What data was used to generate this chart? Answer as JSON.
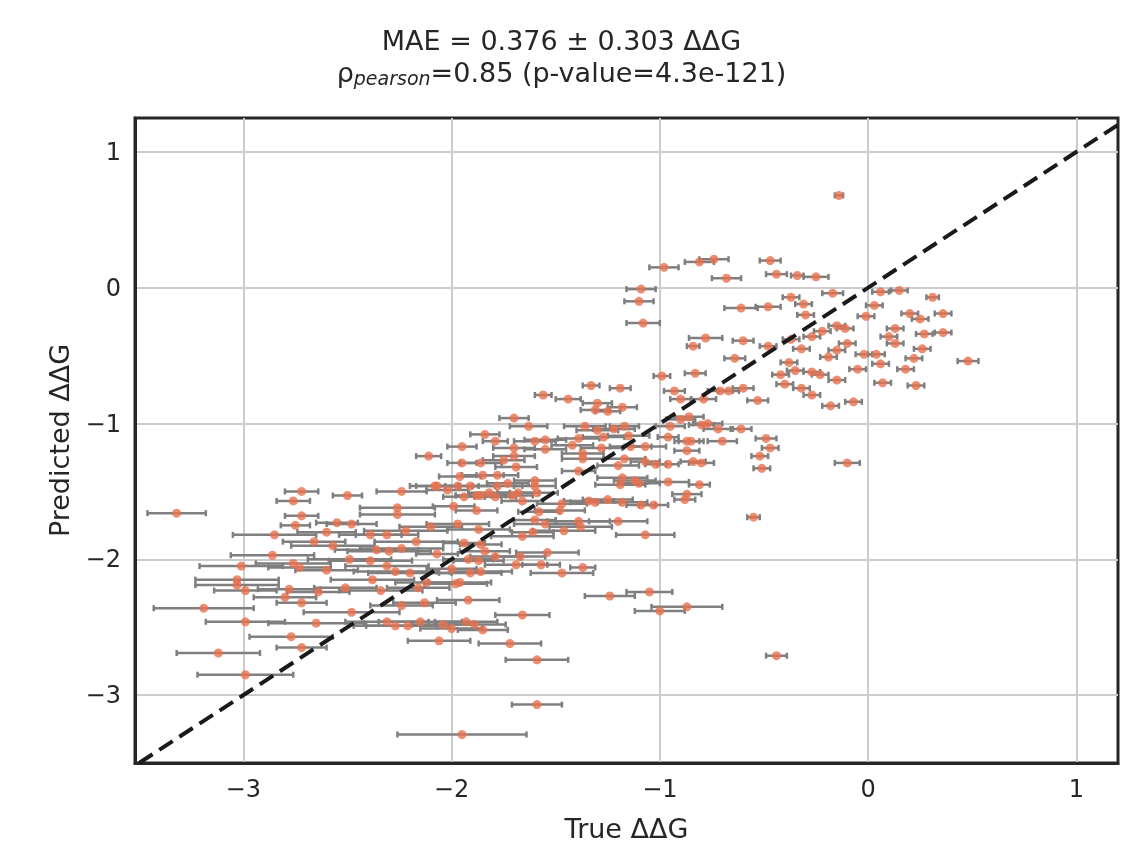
{
  "chart_data": {
    "type": "scatter",
    "title": "MAE = 0.376 ± 0.303 ΔΔG",
    "subtitle": "ρ$_{pearson}$=0.85 (p-value=4.3e-121)",
    "xlabel": "True ΔΔG",
    "ylabel": "Predicted ΔΔG",
    "xlim": [
      -3.52,
      1.2
    ],
    "ylim": [
      -3.5,
      1.25
    ],
    "xticks": [
      {
        "value": -3,
        "label": "−3"
      },
      {
        "value": -2,
        "label": "−2"
      },
      {
        "value": -1,
        "label": "−1"
      },
      0,
      1
    ],
    "yticks": [
      {
        "value": -3,
        "label": "−3"
      },
      {
        "value": -2,
        "label": "−2"
      },
      {
        "value": -1,
        "label": "−1"
      },
      0,
      1
    ],
    "grid": true,
    "series": [
      {
        "color": "#e8704f",
        "marker": "circle",
        "x": [
          -3.32,
          -2.72,
          -2.76,
          -2.72,
          -2.75,
          -2.85,
          -2.5,
          -2.6,
          -2.55,
          -2.48,
          -2.66,
          -2.86,
          -3.01,
          -3.03,
          -3.03,
          -2.99,
          -2.76,
          -2.73,
          -2.78,
          -2.8,
          -2.72,
          -2.64,
          -3.19,
          -2.99,
          -2.65,
          -2.77,
          -2.72,
          -3.12,
          -2.99,
          -2.48,
          -2.51,
          -2.6,
          -2.39,
          -2.31,
          -2.26,
          -2.26,
          -2.24,
          -2.11,
          -2.08,
          -2.1,
          -2.36,
          -2.3,
          -2.24,
          -2.49,
          -2.39,
          -2.31,
          -2.27,
          -2.2,
          -2.38,
          -2.34,
          -2.12,
          -2.16,
          -2.24,
          -2.13,
          -2.31,
          -2.27,
          -2.21,
          -2.15,
          -2.06,
          -2.22,
          -2.17,
          -2.57,
          -1.33,
          -1.19,
          -1.56,
          -1.44,
          -1.3,
          -1.31,
          -1.25,
          -1.18,
          -1.7,
          -1.63,
          -1.84,
          -1.79,
          -1.95,
          -1.6,
          -1.55,
          -1.55,
          -1.7,
          -1.7,
          -1.75,
          -1.95,
          -1.86,
          -1.69,
          -1.42,
          -1.39,
          -1.36,
          -1.3,
          -1.27,
          -1.22,
          -1.17,
          -1.15,
          -1.28,
          -1.37,
          -1.37,
          -1.2,
          -1.39,
          -1.17,
          -1.14,
          -1.07,
          -1.07,
          -1.02,
          -0.96,
          -0.96,
          -0.95,
          -0.9,
          -0.86,
          -0.87,
          -0.85,
          -0.87,
          -0.8,
          -0.77,
          -0.72,
          -0.7,
          -0.84,
          -0.8,
          -0.93,
          -0.9,
          -0.79,
          -0.71,
          -0.67,
          -1.96,
          -1.85,
          -1.78,
          -2.07,
          -2.02,
          -1.97,
          -1.91,
          -1.86,
          -1.78,
          -1.6,
          -1.6,
          -1.73,
          -1.94,
          -1.88,
          -1.82,
          -1.79,
          -1.71,
          -1.68,
          -1.66,
          -1.59,
          -1.99,
          -1.88,
          -1.47,
          -1.48,
          -1.58,
          -1.6,
          -1.34,
          -1.31,
          -1.25,
          -1.18,
          -1.09,
          -1.03,
          -0.96,
          -1.18,
          -1.19,
          -1.12,
          -1.1,
          -0.81,
          -0.87,
          -0.88,
          -1.55,
          -1.46,
          -1.39,
          -1.38,
          -1.2,
          -1.07,
          -1.66,
          -1.61,
          -1.97,
          -1.87,
          -1.86,
          -1.94,
          -1.84,
          -1.79,
          -1.92,
          -1.87,
          -1.91,
          -1.86,
          -2.0,
          -2.07,
          -1.54,
          -1.67,
          -1.69,
          -1.57,
          -1.47,
          -1.37,
          -1.98,
          -1.96,
          -1.92,
          -1.24,
          -1.05,
          -0.87,
          -1.0,
          -1.66,
          -2.04,
          -2.0,
          -1.93,
          -1.89,
          -1.85,
          -1.72,
          -1.59,
          -1.59,
          -1.95,
          -0.98,
          -1.09,
          -1.1,
          -1.08,
          -0.81,
          -0.74,
          -0.68,
          -0.47,
          -0.44,
          -0.34,
          -0.25,
          -0.48,
          -0.61,
          -0.78,
          -0.6,
          -0.84,
          -0.64,
          -0.6,
          -0.53,
          -0.61,
          -0.49,
          -0.52,
          -0.51,
          -0.47,
          -0.55,
          -0.44,
          -0.1,
          -0.14,
          -0.37,
          -0.31,
          -0.17,
          0.06,
          0.15,
          0.31,
          0.03,
          -0.01,
          -0.15,
          -0.3,
          -0.27,
          -0.37,
          -0.32,
          -0.22,
          -0.11,
          -0.1,
          -0.19,
          -0.23,
          -0.15,
          -0.05,
          0.06,
          0.13,
          0.2,
          0.25,
          0.36,
          0.36,
          0.27,
          0.26,
          0.22,
          0.18,
          0.48,
          0.23,
          0.07,
          0.04,
          -0.02,
          0.1,
          0.13,
          -0.15,
          -0.35,
          -0.27,
          -0.32,
          -0.4,
          -0.27,
          -0.18,
          -0.07,
          -0.38,
          -0.48,
          -0.42,
          -0.99,
          -0.83
        ],
        "values": [
          -1.66,
          -1.5,
          -1.57,
          -1.68,
          -1.75,
          -1.82,
          -1.53,
          -1.8,
          -1.73,
          -1.74,
          -1.87,
          -1.97,
          -2.05,
          -2.15,
          -2.19,
          -2.23,
          -2.03,
          -2.06,
          -2.22,
          -2.28,
          -2.32,
          -2.24,
          -2.36,
          -2.46,
          -2.47,
          -2.57,
          -2.65,
          -2.69,
          -2.85,
          -2.39,
          -2.21,
          -2.08,
          -1.82,
          -1.82,
          -1.62,
          -1.67,
          -1.5,
          -1.24,
          -1.46,
          -1.76,
          -1.93,
          -1.94,
          -1.92,
          -2.0,
          -2.01,
          -2.05,
          -2.09,
          -2.1,
          -2.15,
          -2.23,
          -2.17,
          -2.21,
          -2.34,
          -2.32,
          -2.46,
          -2.49,
          -2.49,
          -2.46,
          -2.6,
          -1.79,
          -1.87,
          -1.9,
          -0.72,
          -0.74,
          -0.79,
          -0.82,
          -0.85,
          -0.9,
          -0.91,
          -0.88,
          -0.96,
          -1.02,
          -1.08,
          -1.13,
          -1.17,
          -1.13,
          -1.12,
          -1.19,
          -1.18,
          -1.24,
          -1.27,
          -1.29,
          -1.29,
          -1.32,
          -1.16,
          -1.11,
          -1.02,
          -1.05,
          -1.1,
          -1.04,
          -1.02,
          -1.09,
          -1.18,
          -1.22,
          -1.26,
          -1.31,
          -1.35,
          -1.26,
          -1.17,
          -1.17,
          -1.28,
          -1.3,
          -1.3,
          -1.1,
          -1.02,
          -0.97,
          -0.95,
          -1.13,
          -1.13,
          -1.2,
          -1.01,
          -1.0,
          -1.04,
          -1.13,
          -1.28,
          -1.29,
          -0.76,
          -0.82,
          -0.82,
          -0.76,
          -0.76,
          -1.39,
          -1.38,
          -1.38,
          -1.46,
          -1.49,
          -1.46,
          -1.46,
          -1.53,
          -1.46,
          -1.42,
          -1.46,
          -1.44,
          -1.54,
          -1.53,
          -1.51,
          -1.54,
          -1.53,
          -1.51,
          -1.57,
          -1.51,
          -1.61,
          -1.64,
          -1.59,
          -1.64,
          -1.65,
          -1.71,
          -1.57,
          -1.58,
          -1.56,
          -1.58,
          -1.6,
          -1.6,
          -1.43,
          -1.4,
          -1.45,
          -1.42,
          -1.44,
          -1.45,
          -1.52,
          -1.56,
          -1.74,
          -1.79,
          -1.72,
          -1.76,
          -1.72,
          -1.82,
          -1.83,
          -1.8,
          -1.74,
          -1.78,
          -1.89,
          -1.88,
          -1.94,
          -1.98,
          -2.0,
          -2.01,
          -2.1,
          -2.09,
          -2.07,
          -1.96,
          -1.95,
          -1.98,
          -2.04,
          -2.04,
          -2.1,
          -2.06,
          -2.18,
          -2.17,
          -2.3,
          -2.27,
          -2.24,
          -2.35,
          -2.38,
          -2.41,
          -2.48,
          -2.51,
          -2.46,
          -2.48,
          -2.52,
          -2.62,
          -2.74,
          -3.07,
          -3.29,
          0.15,
          -0.01,
          -0.1,
          -0.26,
          0.19,
          0.21,
          0.07,
          0.2,
          0.1,
          0.09,
          0.08,
          -0.14,
          -0.15,
          -0.37,
          -0.39,
          -0.43,
          -0.52,
          -0.74,
          -0.83,
          -1.04,
          -1.11,
          -1.24,
          -1.33,
          -1.18,
          -1.69,
          -2.71,
          -1.29,
          0.68,
          -0.07,
          -0.12,
          -0.04,
          -0.03,
          -0.02,
          -0.07,
          -0.13,
          -0.21,
          -0.28,
          -0.2,
          -0.36,
          -0.38,
          -0.45,
          -0.32,
          -0.3,
          -0.41,
          -0.51,
          -0.64,
          -0.68,
          -0.6,
          -0.56,
          -0.3,
          -0.19,
          -0.23,
          -0.19,
          -0.33,
          -0.34,
          -0.45,
          -0.52,
          -0.6,
          -0.54,
          -0.72,
          -0.7,
          -0.49,
          -0.49,
          -0.36,
          -0.41,
          -0.46,
          -0.61,
          -0.62,
          -0.74,
          -0.71,
          -0.79,
          -0.87,
          -0.84,
          -0.55,
          -0.43,
          -0.64,
          -0.65,
          -0.63
        ],
        "xerrors": [
          0.14,
          0.08,
          0.08,
          0.08,
          0.07,
          0.2,
          0.07,
          0.14,
          0.1,
          0.12,
          0.15,
          0.2,
          0.2,
          0.2,
          0.2,
          0.15,
          0.18,
          0.15,
          0.15,
          0.15,
          0.12,
          0.15,
          0.24,
          0.19,
          0.23,
          0.2,
          0.12,
          0.2,
          0.23,
          0.23,
          0.15,
          0.15,
          0.15,
          0.15,
          0.18,
          0.18,
          0.12,
          0.06,
          0.12,
          0.15,
          0.2,
          0.2,
          0.2,
          0.2,
          0.2,
          0.2,
          0.2,
          0.2,
          0.2,
          0.2,
          0.15,
          0.15,
          0.15,
          0.15,
          0.2,
          0.2,
          0.2,
          0.2,
          0.15,
          0.2,
          0.2,
          0.2,
          0.04,
          0.05,
          0.04,
          0.06,
          0.07,
          0.07,
          0.06,
          0.07,
          0.07,
          0.09,
          0.07,
          0.06,
          0.07,
          0.1,
          0.1,
          0.1,
          0.1,
          0.1,
          0.1,
          0.07,
          0.1,
          0.1,
          0.1,
          0.1,
          0.1,
          0.1,
          0.1,
          0.1,
          0.07,
          0.1,
          0.1,
          0.1,
          0.1,
          0.1,
          0.08,
          0.1,
          0.1,
          0.1,
          0.07,
          0.05,
          0.05,
          0.05,
          0.07,
          0.07,
          0.07,
          0.06,
          0.06,
          0.06,
          0.06,
          0.07,
          0.07,
          0.07,
          0.06,
          0.06,
          0.05,
          0.05,
          0.06,
          0.06,
          0.05,
          0.1,
          0.1,
          0.1,
          0.1,
          0.1,
          0.1,
          0.12,
          0.12,
          0.12,
          0.1,
          0.1,
          0.1,
          0.1,
          0.1,
          0.1,
          0.1,
          0.1,
          0.1,
          0.1,
          0.1,
          0.1,
          0.1,
          0.12,
          0.12,
          0.1,
          0.1,
          0.12,
          0.12,
          0.12,
          0.12,
          0.07,
          0.07,
          0.1,
          0.12,
          0.12,
          0.1,
          0.1,
          0.05,
          0.07,
          0.05,
          0.15,
          0.15,
          0.15,
          0.15,
          0.14,
          0.14,
          0.15,
          0.1,
          0.15,
          0.15,
          0.1,
          0.1,
          0.12,
          0.12,
          0.12,
          0.12,
          0.15,
          0.15,
          0.12,
          0.1,
          0.15,
          0.12,
          0.15,
          0.09,
          0.15,
          0.06,
          0.15,
          0.15,
          0.15,
          0.12,
          0.11,
          0.17,
          0.12,
          0.13,
          0.15,
          0.15,
          0.15,
          0.15,
          0.12,
          0.15,
          0.15,
          0.12,
          0.31,
          0.07,
          0.07,
          0.07,
          0.08,
          0.07,
          0.07,
          0.07,
          0.05,
          0.05,
          0.03,
          0.06,
          0.06,
          0.08,
          0.08,
          0.05,
          0.03,
          0.05,
          0.05,
          0.05,
          0.05,
          0.05,
          0.04,
          0.04,
          0.04,
          0.03,
          0.05,
          0.06,
          0.02,
          0.04,
          0.04,
          0.05,
          0.04,
          0.04,
          0.03,
          0.04,
          0.04,
          0.04,
          0.04,
          0.04,
          0.04,
          0.04,
          0.04,
          0.04,
          0.04,
          0.04,
          0.04,
          0.04,
          0.04,
          0.04,
          0.04,
          0.04,
          0.04,
          0.04,
          0.04,
          0.04,
          0.04,
          0.04,
          0.04,
          0.05,
          0.04,
          0.04,
          0.04,
          0.04,
          0.04,
          0.04,
          0.04,
          0.04,
          0.04,
          0.04,
          0.04,
          0.04,
          0.04,
          0.04,
          0.04,
          0.04,
          0.04,
          0.04,
          0.05
        ]
      },
      {
        "type": "line",
        "color": "#1a1a1a",
        "line_style": "dashed",
        "marker": "none",
        "x": [
          -3.5,
          1.2
        ],
        "values": [
          -3.5,
          1.2
        ]
      }
    ]
  }
}
